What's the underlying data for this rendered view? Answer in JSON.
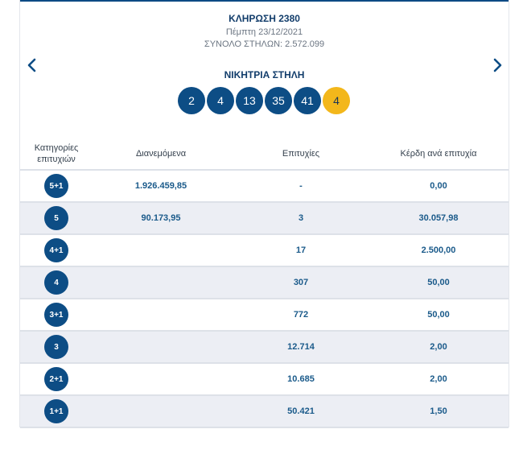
{
  "draw": {
    "title": "ΚΛΗΡΩΣΗ 2380",
    "date": "Πέμπτη 23/12/2021",
    "total_columns": "ΣΥΝΟΛΟ ΣΤΗΛΩΝ: 2.572.099",
    "winning_label": "ΝΙΚΗΤΡΙΑ ΣΤΗΛΗ"
  },
  "navigation": {
    "prev_icon": "chevron-left-icon",
    "next_icon": "chevron-right-icon"
  },
  "numbers": [
    "2",
    "4",
    "13",
    "35",
    "41"
  ],
  "joker": "4",
  "colors": {
    "primary": "#0d4d85",
    "joker": "#f3b71b",
    "row_alt": "#eceef4",
    "value_text": "#1a5a8a"
  },
  "table": {
    "headers": {
      "category_line1": "Κατηγορίες",
      "category_line2": "επιτυχιών",
      "distributed": "Διανεμόμενα",
      "winners": "Επιτυχίες",
      "prize": "Κέρδη ανά επιτυχία"
    },
    "rows": [
      {
        "category": "5+1",
        "distributed": "1.926.459,85",
        "winners": "-",
        "prize": "0,00"
      },
      {
        "category": "5",
        "distributed": "90.173,95",
        "winners": "3",
        "prize": "30.057,98"
      },
      {
        "category": "4+1",
        "distributed": "",
        "winners": "17",
        "prize": "2.500,00"
      },
      {
        "category": "4",
        "distributed": "",
        "winners": "307",
        "prize": "50,00"
      },
      {
        "category": "3+1",
        "distributed": "",
        "winners": "772",
        "prize": "50,00"
      },
      {
        "category": "3",
        "distributed": "",
        "winners": "12.714",
        "prize": "2,00"
      },
      {
        "category": "2+1",
        "distributed": "",
        "winners": "10.685",
        "prize": "2,00"
      },
      {
        "category": "1+1",
        "distributed": "",
        "winners": "50.421",
        "prize": "1,50"
      }
    ]
  }
}
